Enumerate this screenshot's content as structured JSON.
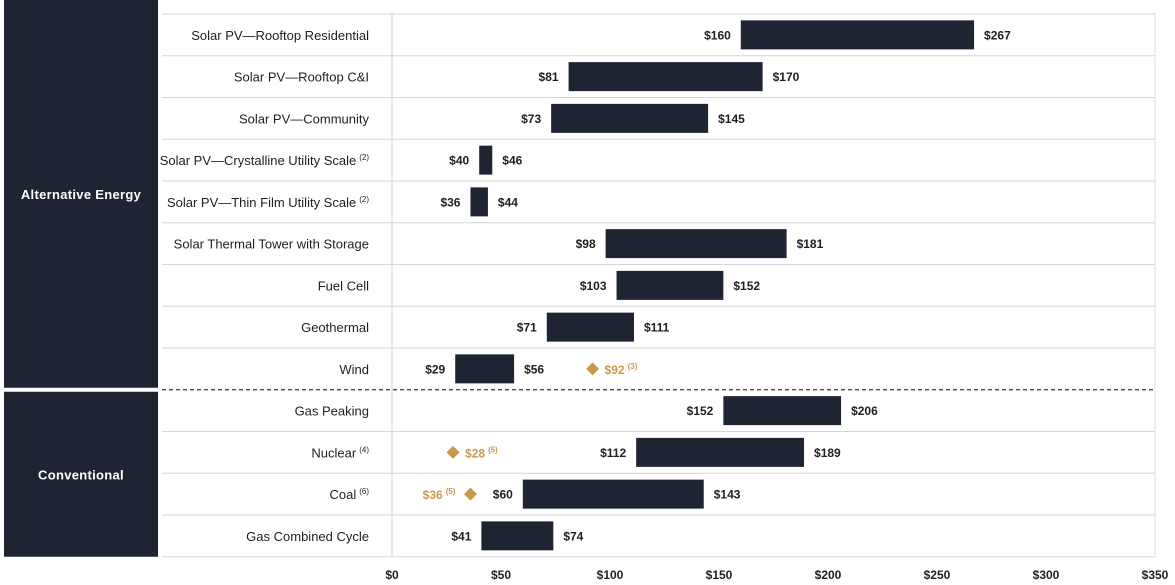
{
  "chart_data": {
    "type": "bar",
    "subtype": "floating-range",
    "xlim": [
      0,
      350
    ],
    "x_ticks": [
      0,
      50,
      100,
      150,
      200,
      250,
      300,
      350
    ],
    "x_tick_labels": [
      "$0",
      "$50",
      "$100",
      "$150",
      "$200",
      "$250",
      "$300",
      "$350"
    ],
    "grid": true,
    "colors": {
      "bar": "#1f2433",
      "marker": "#c89a4b",
      "group_panel": "#1f2433"
    },
    "groups": [
      {
        "name": "Alternative Energy",
        "rows": [
          0,
          8
        ]
      },
      {
        "name": "Conventional",
        "rows": [
          9,
          12
        ]
      }
    ],
    "rows": [
      {
        "label": "Solar PV—Rooftop Residential",
        "note": "",
        "low": 160,
        "high": 267,
        "low_label": "$160",
        "high_label": "$267"
      },
      {
        "label": "Solar PV—Rooftop C&I",
        "note": "",
        "low": 81,
        "high": 170,
        "low_label": "$81",
        "high_label": "$170"
      },
      {
        "label": "Solar PV—Community",
        "note": "",
        "low": 73,
        "high": 145,
        "low_label": "$73",
        "high_label": "$145"
      },
      {
        "label": "Solar PV—Crystalline Utility Scale",
        "note": "(2)",
        "low": 40,
        "high": 46,
        "low_label": "$40",
        "high_label": "$46"
      },
      {
        "label": "Solar PV—Thin Film Utility Scale",
        "note": "(2)",
        "low": 36,
        "high": 44,
        "low_label": "$36",
        "high_label": "$44"
      },
      {
        "label": "Solar Thermal Tower with Storage",
        "note": "",
        "low": 98,
        "high": 181,
        "low_label": "$98",
        "high_label": "$181"
      },
      {
        "label": "Fuel Cell",
        "note": "",
        "low": 103,
        "high": 152,
        "low_label": "$103",
        "high_label": "$152"
      },
      {
        "label": "Geothermal",
        "note": "",
        "low": 71,
        "high": 111,
        "low_label": "$71",
        "high_label": "$111"
      },
      {
        "label": "Wind",
        "note": "",
        "low": 29,
        "high": 56,
        "low_label": "$29",
        "high_label": "$56",
        "marker": {
          "value": 92,
          "label": "$92",
          "note": "(3)",
          "side": "right"
        }
      },
      {
        "label": "Gas Peaking",
        "note": "",
        "low": 152,
        "high": 206,
        "low_label": "$152",
        "high_label": "$206"
      },
      {
        "label": "Nuclear",
        "note": "(4)",
        "low": 112,
        "high": 189,
        "low_label": "$112",
        "high_label": "$189",
        "marker": {
          "value": 28,
          "label": "$28",
          "note": "(5)",
          "side": "right"
        }
      },
      {
        "label": "Coal",
        "note": "(6)",
        "low": 60,
        "high": 143,
        "low_label": "$60",
        "high_label": "$143",
        "marker": {
          "value": 36,
          "label": "$36",
          "note": "(5)",
          "side": "left"
        }
      },
      {
        "label": "Gas Combined Cycle",
        "note": "",
        "low": 41,
        "high": 74,
        "low_label": "$41",
        "high_label": "$74"
      }
    ]
  }
}
